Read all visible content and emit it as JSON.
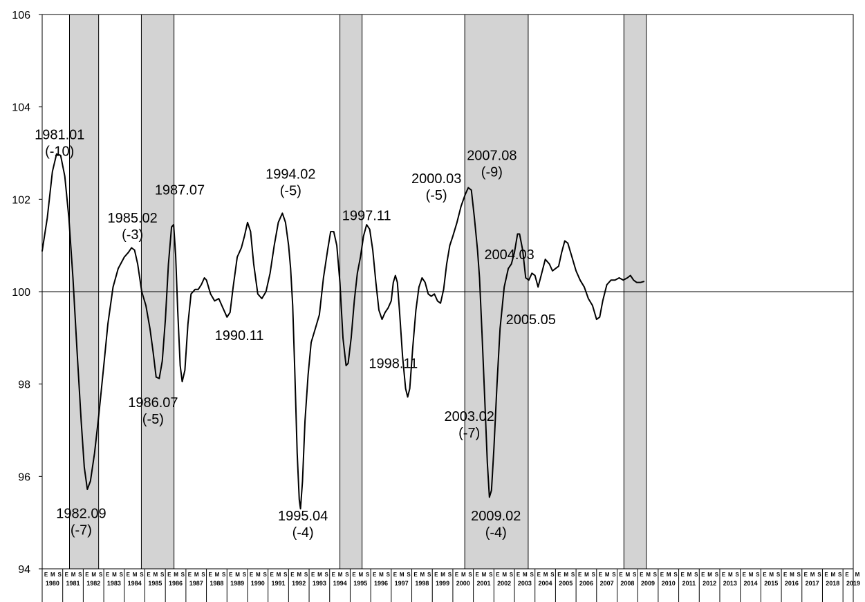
{
  "chart_data": {
    "type": "line",
    "title": "",
    "xlabel": "",
    "ylabel": "",
    "ylim": [
      94,
      106
    ],
    "yticks": [
      94,
      96,
      98,
      100,
      102,
      104,
      106
    ],
    "xlim": [
      1980.0,
      2019.5
    ],
    "reference_line": 100,
    "grid": false,
    "legend": "none",
    "colors": {
      "line": "#000000",
      "band_fill": "#d3d3d3",
      "band_stroke": "#000000"
    },
    "month_labels": [
      "E",
      "M",
      "S"
    ],
    "years": [
      "1980",
      "1981",
      "1982",
      "1983",
      "1984",
      "1985",
      "1986",
      "1987",
      "1988",
      "1989",
      "1990",
      "1991",
      "1992",
      "1993",
      "1994",
      "1995",
      "1996",
      "1997",
      "1998",
      "1999",
      "2000",
      "2001",
      "2002",
      "2003",
      "2004",
      "2005",
      "2006",
      "2007",
      "2008",
      "2009",
      "2010",
      "2011",
      "2012",
      "2013",
      "2014",
      "2015",
      "2016",
      "2017",
      "2018",
      "2019"
    ],
    "shaded_periods": [
      {
        "start": 1981.33,
        "end": 1982.75
      },
      {
        "start": 1984.83,
        "end": 1986.42
      },
      {
        "start": 1994.5,
        "end": 1995.58
      },
      {
        "start": 2000.58,
        "end": 2003.67
      },
      {
        "start": 2008.33,
        "end": 2009.42
      }
    ],
    "series": [
      {
        "values": [
          [
            1980.0,
            100.88
          ],
          [
            1980.25,
            101.6
          ],
          [
            1980.5,
            102.6
          ],
          [
            1980.7,
            102.98
          ],
          [
            1980.9,
            102.95
          ],
          [
            1981.1,
            102.5
          ],
          [
            1981.3,
            101.6
          ],
          [
            1981.5,
            100.3
          ],
          [
            1981.7,
            98.7
          ],
          [
            1981.9,
            97.2
          ],
          [
            1982.05,
            96.2
          ],
          [
            1982.2,
            95.72
          ],
          [
            1982.35,
            95.9
          ],
          [
            1982.55,
            96.5
          ],
          [
            1982.75,
            97.3
          ],
          [
            1983.0,
            98.4
          ],
          [
            1983.2,
            99.3
          ],
          [
            1983.45,
            100.1
          ],
          [
            1983.7,
            100.5
          ],
          [
            1984.0,
            100.75
          ],
          [
            1984.2,
            100.85
          ],
          [
            1984.35,
            100.95
          ],
          [
            1984.5,
            100.9
          ],
          [
            1984.65,
            100.6
          ],
          [
            1984.85,
            100.0
          ],
          [
            1985.05,
            99.7
          ],
          [
            1985.25,
            99.2
          ],
          [
            1985.4,
            98.7
          ],
          [
            1985.55,
            98.15
          ],
          [
            1985.7,
            98.12
          ],
          [
            1985.85,
            98.5
          ],
          [
            1986.0,
            99.4
          ],
          [
            1986.15,
            100.6
          ],
          [
            1986.3,
            101.4
          ],
          [
            1986.4,
            101.45
          ],
          [
            1986.5,
            100.8
          ],
          [
            1986.6,
            99.6
          ],
          [
            1986.72,
            98.4
          ],
          [
            1986.82,
            98.05
          ],
          [
            1986.95,
            98.3
          ],
          [
            1987.1,
            99.3
          ],
          [
            1987.25,
            99.95
          ],
          [
            1987.45,
            100.05
          ],
          [
            1987.6,
            100.05
          ],
          [
            1987.75,
            100.15
          ],
          [
            1987.9,
            100.3
          ],
          [
            1988.0,
            100.25
          ],
          [
            1988.2,
            99.95
          ],
          [
            1988.4,
            99.8
          ],
          [
            1988.6,
            99.85
          ],
          [
            1988.8,
            99.65
          ],
          [
            1989.0,
            99.45
          ],
          [
            1989.15,
            99.55
          ],
          [
            1989.3,
            100.1
          ],
          [
            1989.5,
            100.75
          ],
          [
            1989.7,
            100.95
          ],
          [
            1989.85,
            101.2
          ],
          [
            1990.0,
            101.5
          ],
          [
            1990.15,
            101.3
          ],
          [
            1990.3,
            100.6
          ],
          [
            1990.5,
            99.95
          ],
          [
            1990.7,
            99.85
          ],
          [
            1990.9,
            100.0
          ],
          [
            1991.1,
            100.4
          ],
          [
            1991.3,
            101.0
          ],
          [
            1991.5,
            101.5
          ],
          [
            1991.7,
            101.7
          ],
          [
            1991.85,
            101.5
          ],
          [
            1992.0,
            101.0
          ],
          [
            1992.1,
            100.5
          ],
          [
            1992.2,
            99.7
          ],
          [
            1992.3,
            98.3
          ],
          [
            1992.42,
            96.5
          ],
          [
            1992.52,
            95.5
          ],
          [
            1992.58,
            95.3
          ],
          [
            1992.68,
            95.9
          ],
          [
            1992.8,
            97.2
          ],
          [
            1992.95,
            98.2
          ],
          [
            1993.1,
            98.9
          ],
          [
            1993.3,
            99.2
          ],
          [
            1993.5,
            99.5
          ],
          [
            1993.7,
            100.3
          ],
          [
            1993.9,
            100.9
          ],
          [
            1994.05,
            101.3
          ],
          [
            1994.2,
            101.3
          ],
          [
            1994.35,
            101.0
          ],
          [
            1994.5,
            100.2
          ],
          [
            1994.65,
            99.0
          ],
          [
            1994.8,
            98.4
          ],
          [
            1994.9,
            98.45
          ],
          [
            1995.05,
            99.0
          ],
          [
            1995.2,
            99.8
          ],
          [
            1995.35,
            100.4
          ],
          [
            1995.5,
            100.75
          ],
          [
            1995.65,
            101.2
          ],
          [
            1995.8,
            101.45
          ],
          [
            1995.95,
            101.35
          ],
          [
            1996.1,
            100.9
          ],
          [
            1996.25,
            100.2
          ],
          [
            1996.4,
            99.6
          ],
          [
            1996.55,
            99.4
          ],
          [
            1996.7,
            99.55
          ],
          [
            1996.85,
            99.65
          ],
          [
            1997.0,
            99.8
          ],
          [
            1997.1,
            100.2
          ],
          [
            1997.2,
            100.35
          ],
          [
            1997.3,
            100.2
          ],
          [
            1997.4,
            99.6
          ],
          [
            1997.55,
            98.6
          ],
          [
            1997.7,
            97.9
          ],
          [
            1997.8,
            97.72
          ],
          [
            1997.9,
            97.9
          ],
          [
            1998.05,
            98.8
          ],
          [
            1998.2,
            99.6
          ],
          [
            1998.35,
            100.1
          ],
          [
            1998.5,
            100.3
          ],
          [
            1998.65,
            100.2
          ],
          [
            1998.8,
            99.95
          ],
          [
            1998.95,
            99.9
          ],
          [
            1999.1,
            99.95
          ],
          [
            1999.25,
            99.8
          ],
          [
            1999.4,
            99.75
          ],
          [
            1999.55,
            100.05
          ],
          [
            1999.7,
            100.6
          ],
          [
            1999.85,
            101.0
          ],
          [
            2000.0,
            101.2
          ],
          [
            2000.2,
            101.5
          ],
          [
            2000.4,
            101.85
          ],
          [
            2000.6,
            102.1
          ],
          [
            2000.75,
            102.25
          ],
          [
            2000.9,
            102.2
          ],
          [
            2001.05,
            101.6
          ],
          [
            2001.2,
            100.9
          ],
          [
            2001.3,
            100.3
          ],
          [
            2001.42,
            99.1
          ],
          [
            2001.55,
            97.7
          ],
          [
            2001.68,
            96.3
          ],
          [
            2001.78,
            95.55
          ],
          [
            2001.88,
            95.7
          ],
          [
            2002.0,
            96.6
          ],
          [
            2002.15,
            98.0
          ],
          [
            2002.3,
            99.2
          ],
          [
            2002.5,
            100.1
          ],
          [
            2002.7,
            100.5
          ],
          [
            2002.85,
            100.6
          ],
          [
            2003.0,
            100.85
          ],
          [
            2003.15,
            101.25
          ],
          [
            2003.25,
            101.25
          ],
          [
            2003.4,
            100.9
          ],
          [
            2003.55,
            100.3
          ],
          [
            2003.7,
            100.25
          ],
          [
            2003.85,
            100.4
          ],
          [
            2004.0,
            100.35
          ],
          [
            2004.15,
            100.1
          ],
          [
            2004.3,
            100.35
          ],
          [
            2004.5,
            100.7
          ],
          [
            2004.7,
            100.6
          ],
          [
            2004.85,
            100.45
          ],
          [
            2005.0,
            100.5
          ],
          [
            2005.15,
            100.55
          ],
          [
            2005.3,
            100.85
          ],
          [
            2005.45,
            101.1
          ],
          [
            2005.6,
            101.05
          ],
          [
            2005.8,
            100.75
          ],
          [
            2006.0,
            100.45
          ],
          [
            2006.2,
            100.25
          ],
          [
            2006.4,
            100.1
          ],
          [
            2006.6,
            99.85
          ],
          [
            2006.8,
            99.7
          ],
          [
            2007.0,
            99.4
          ],
          [
            2007.15,
            99.45
          ],
          [
            2007.3,
            99.8
          ],
          [
            2007.5,
            100.15
          ],
          [
            2007.7,
            100.25
          ],
          [
            2007.9,
            100.25
          ],
          [
            2008.1,
            100.3
          ],
          [
            2008.3,
            100.25
          ],
          [
            2008.5,
            100.3
          ],
          [
            2008.65,
            100.35
          ],
          [
            2008.8,
            100.25
          ],
          [
            2008.95,
            100.2
          ],
          [
            2009.15,
            100.2
          ],
          [
            2009.3,
            100.22
          ]
        ]
      }
    ],
    "annotations": [
      {
        "lines": [
          "1981.01",
          "(-10)"
        ],
        "x": 1980.85,
        "y": 103.3
      },
      {
        "lines": [
          "1982.09",
          "(-7)"
        ],
        "x": 1981.9,
        "y": 95.1
      },
      {
        "lines": [
          "1985.02",
          "(-3)"
        ],
        "x": 1984.4,
        "y": 101.5
      },
      {
        "lines": [
          "1987.07"
        ],
        "x": 1986.7,
        "y": 102.1
      },
      {
        "lines": [
          "1986.07",
          "(-5)"
        ],
        "x": 1985.4,
        "y": 97.5
      },
      {
        "lines": [
          "1990.11"
        ],
        "x": 1989.6,
        "y": 98.95
      },
      {
        "lines": [
          "1994.02",
          "(-5)"
        ],
        "x": 1992.1,
        "y": 102.45
      },
      {
        "lines": [
          "1995.04",
          "(-4)"
        ],
        "x": 1992.7,
        "y": 95.05
      },
      {
        "lines": [
          "1997.11"
        ],
        "x": 1995.8,
        "y": 101.55
      },
      {
        "lines": [
          "1998.11"
        ],
        "x": 1997.1,
        "y": 98.35
      },
      {
        "lines": [
          "2000.03",
          "(-5)"
        ],
        "x": 1999.2,
        "y": 102.35
      },
      {
        "lines": [
          "2003.02",
          "(-7)"
        ],
        "x": 2000.8,
        "y": 97.2
      },
      {
        "lines": [
          "2004.03"
        ],
        "x": 2002.75,
        "y": 100.7
      },
      {
        "lines": [
          "2005.05"
        ],
        "x": 2003.8,
        "y": 99.3
      },
      {
        "lines": [
          "2007.08",
          "(-9)"
        ],
        "x": 2001.9,
        "y": 102.85
      },
      {
        "lines": [
          "2009.02",
          "(-4)"
        ],
        "x": 2002.1,
        "y": 95.05
      }
    ]
  }
}
